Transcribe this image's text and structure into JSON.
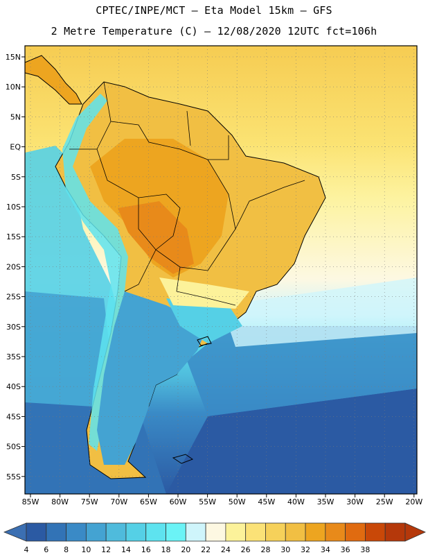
{
  "header": {
    "line1": "CPTEC/INPE/MCT –  Eta Model 15km – GFS",
    "line2": "2 Metre Temperature (C) – 12/08/2020 12UTC fct=106h"
  },
  "map": {
    "lat_labels": [
      "15N",
      "10N",
      "5N",
      "EQ",
      "5S",
      "10S",
      "15S",
      "20S",
      "25S",
      "30S",
      "35S",
      "40S",
      "45S",
      "50S",
      "55S"
    ],
    "lon_labels": [
      "85W",
      "80W",
      "75W",
      "70W",
      "65W",
      "60W",
      "55W",
      "50W",
      "45W",
      "40W",
      "35W",
      "30W",
      "25W",
      "20W"
    ]
  },
  "colorbar": {
    "values": [
      "4",
      "6",
      "8",
      "10",
      "12",
      "14",
      "16",
      "18",
      "20",
      "22",
      "24",
      "26",
      "28",
      "30",
      "32",
      "34",
      "36",
      "38"
    ],
    "colors": [
      "#2b5aa3",
      "#3273b6",
      "#3a8ac6",
      "#44a3d2",
      "#4fbbdc",
      "#55d0e6",
      "#5ee3ef",
      "#6bf3f6",
      "#cff5fb",
      "#fdf8e2",
      "#fcf29a",
      "#fbe277",
      "#f6d15a",
      "#f1bf43",
      "#eda520",
      "#e88a1a",
      "#e06b10",
      "#c94808",
      "#b5380a"
    ],
    "low_color": "#3b6fb2",
    "high_color": "#b5380a"
  }
}
